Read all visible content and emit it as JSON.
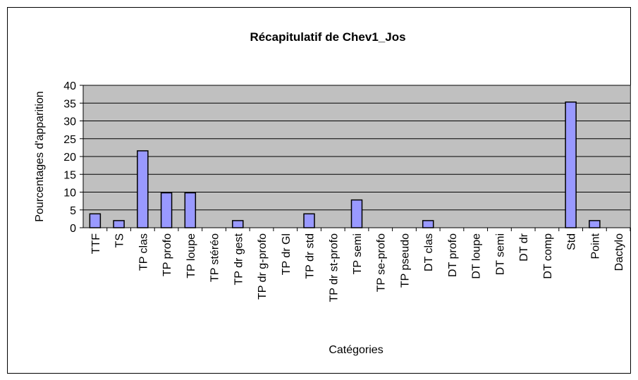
{
  "chart_data": {
    "type": "bar",
    "title": "Récapitulatif de Chev1_Jos",
    "y_label": "Pourcentages d'apparition",
    "x_label": "Catégories",
    "categories": [
      "TTF",
      "TS",
      "TP clas",
      "TP profo",
      "TP loupe",
      "TP stéréo",
      "TP dr gest",
      "TP dr g-profo",
      "TP dr Gl",
      "TP dr std",
      "TP dr st-profo",
      "TP semi",
      "TP se-profo",
      "TP pseudo",
      "DT clas",
      "DT profo",
      "DT loupe",
      "DT semi",
      "DT dr",
      "DT comp",
      "Std",
      "Point",
      "Dactylo"
    ],
    "values": [
      3.9,
      2,
      21.6,
      9.8,
      9.8,
      0,
      2,
      0,
      0,
      3.9,
      0,
      7.8,
      0,
      0,
      2,
      0,
      0,
      0,
      0,
      0,
      35.3,
      2,
      0
    ],
    "color": "#9999ff",
    "ylim": [
      0,
      40
    ],
    "yticks": [
      0,
      5,
      10,
      15,
      20,
      25,
      30,
      35,
      40
    ],
    "grid": true
  }
}
